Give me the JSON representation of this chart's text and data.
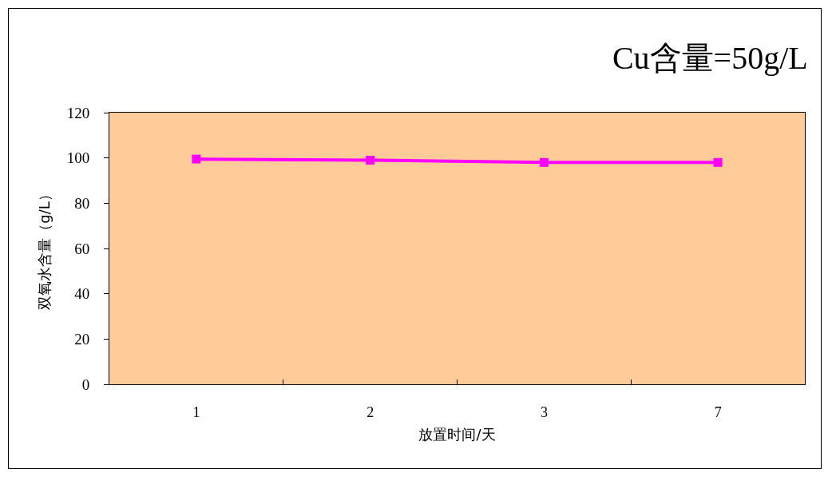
{
  "chart_data": {
    "type": "line",
    "title": "Cu含量=50g/L",
    "xlabel": "放置时间/天",
    "ylabel": "双氧水含量（g/L）",
    "categories": [
      "1",
      "2",
      "3",
      "7"
    ],
    "values": [
      99.5,
      99,
      98,
      98
    ],
    "color": "#ff00ff",
    "ylim": [
      0,
      120
    ],
    "yticks": [
      0,
      20,
      40,
      60,
      80,
      100,
      120
    ],
    "marker": "square",
    "line_style": "solid"
  }
}
